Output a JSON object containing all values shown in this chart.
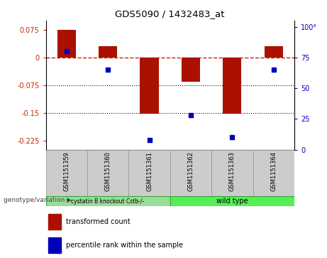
{
  "title": "GDS5090 / 1432483_at",
  "samples": [
    "GSM1151359",
    "GSM1151360",
    "GSM1151361",
    "GSM1151362",
    "GSM1151363",
    "GSM1151364"
  ],
  "bar_values": [
    0.075,
    0.03,
    -0.152,
    -0.065,
    -0.152,
    0.03
  ],
  "percentile_values": [
    80,
    65,
    8,
    28,
    10,
    65
  ],
  "ylim_left": [
    -0.25,
    0.1
  ],
  "ylim_right": [
    0,
    105
  ],
  "yticks_left": [
    0.075,
    0,
    -0.075,
    -0.15,
    -0.225
  ],
  "yticks_right": [
    100,
    75,
    50,
    25,
    0
  ],
  "bar_color": "#aa1100",
  "dot_color": "#0000bb",
  "zero_line_color": "#cc2200",
  "dotted_line_color": "#111111",
  "group1_label": "cystatin B knockout Cstb-/-",
  "group2_label": "wild type",
  "group1_color": "#99dd99",
  "group2_color": "#55ee55",
  "legend_bar_label": "transformed count",
  "legend_dot_label": "percentile rank within the sample",
  "genotype_label": "genotype/variation",
  "sample_box_color": "#cccccc",
  "sample_box_edge": "#999999",
  "group_border_color": "#33aa33"
}
